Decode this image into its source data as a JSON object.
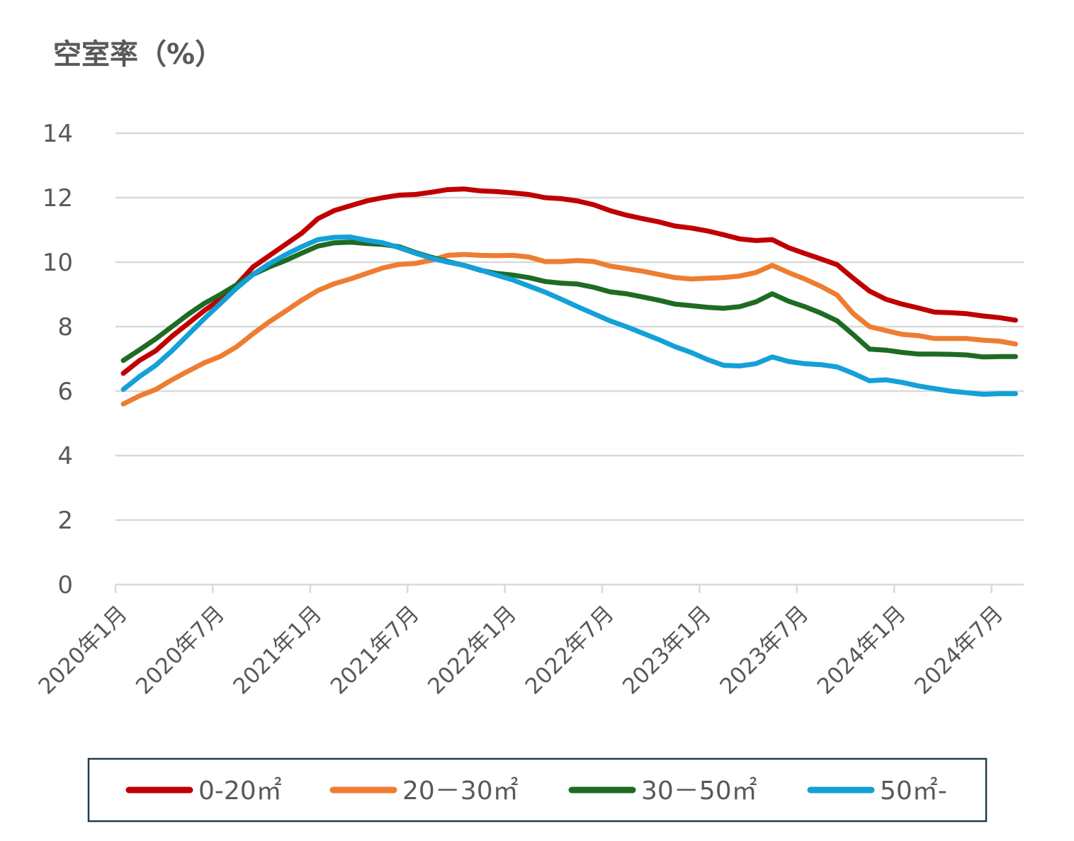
{
  "chart_data": {
    "type": "line",
    "ylabel": "空室率（%）",
    "ylim": [
      0,
      14
    ],
    "yticks": [
      0,
      2,
      4,
      6,
      8,
      10,
      12,
      14
    ],
    "grid": true,
    "legend_position": "bottom",
    "xtick_labels": [
      "2020年1月",
      "2020年7月",
      "2021年1月",
      "2021年7月",
      "2022年1月",
      "2022年7月",
      "2023年1月",
      "2023年7月",
      "2024年1月",
      "2024年7月"
    ],
    "x_start": "2020年1月",
    "x_count": 56,
    "series": [
      {
        "name": "0-20㎡",
        "color": "#c00000",
        "values": [
          6.55,
          6.95,
          7.25,
          7.7,
          8.1,
          8.5,
          8.85,
          9.3,
          9.85,
          10.2,
          10.55,
          10.9,
          11.35,
          11.6,
          11.75,
          11.9,
          12.0,
          12.08,
          12.1,
          12.17,
          12.25,
          12.27,
          12.21,
          12.19,
          12.15,
          12.1,
          12.0,
          11.97,
          11.9,
          11.78,
          11.6,
          11.46,
          11.35,
          11.25,
          11.12,
          11.06,
          10.97,
          10.85,
          10.72,
          10.67,
          10.7,
          10.45,
          10.27,
          10.1,
          9.92,
          9.5,
          9.1,
          8.85,
          8.7,
          8.58,
          8.45,
          8.43,
          8.4,
          8.33,
          8.28,
          8.2
        ]
      },
      {
        "name": "20－30㎡",
        "color": "#ed7d31",
        "values": [
          5.6,
          5.85,
          6.05,
          6.35,
          6.62,
          6.88,
          7.08,
          7.38,
          7.78,
          8.15,
          8.48,
          8.82,
          9.12,
          9.33,
          9.48,
          9.65,
          9.82,
          9.93,
          9.96,
          10.06,
          10.21,
          10.24,
          10.21,
          10.2,
          10.21,
          10.16,
          10.02,
          10.02,
          10.05,
          10.02,
          9.88,
          9.8,
          9.72,
          9.62,
          9.52,
          9.48,
          9.5,
          9.52,
          9.57,
          9.68,
          9.9,
          9.68,
          9.48,
          9.25,
          8.98,
          8.4,
          8.0,
          7.88,
          7.76,
          7.72,
          7.63,
          7.63,
          7.63,
          7.58,
          7.55,
          7.46
        ]
      },
      {
        "name": "30－50㎡",
        "color": "#1e6b24",
        "values": [
          6.95,
          7.28,
          7.62,
          8.0,
          8.38,
          8.72,
          9.0,
          9.3,
          9.62,
          9.85,
          10.05,
          10.28,
          10.5,
          10.6,
          10.62,
          10.58,
          10.55,
          10.48,
          10.3,
          10.15,
          10.02,
          9.9,
          9.75,
          9.65,
          9.6,
          9.52,
          9.4,
          9.35,
          9.32,
          9.22,
          9.08,
          9.02,
          8.92,
          8.82,
          8.7,
          8.65,
          8.6,
          8.57,
          8.62,
          8.77,
          9.02,
          8.79,
          8.62,
          8.42,
          8.18,
          7.75,
          7.3,
          7.27,
          7.2,
          7.15,
          7.15,
          7.14,
          7.12,
          7.06,
          7.07,
          7.07
        ]
      },
      {
        "name": "50㎡-",
        "color": "#14a0d8",
        "values": [
          6.05,
          6.45,
          6.8,
          7.25,
          7.75,
          8.25,
          8.72,
          9.2,
          9.62,
          9.95,
          10.23,
          10.48,
          10.7,
          10.77,
          10.78,
          10.68,
          10.6,
          10.45,
          10.28,
          10.12,
          10.0,
          9.9,
          9.76,
          9.6,
          9.45,
          9.26,
          9.07,
          8.85,
          8.62,
          8.4,
          8.18,
          8.0,
          7.8,
          7.6,
          7.38,
          7.2,
          6.98,
          6.8,
          6.78,
          6.85,
          7.06,
          6.92,
          6.85,
          6.82,
          6.75,
          6.55,
          6.32,
          6.35,
          6.27,
          6.16,
          6.08,
          6.0,
          5.95,
          5.9,
          5.92,
          5.92
        ]
      }
    ]
  }
}
